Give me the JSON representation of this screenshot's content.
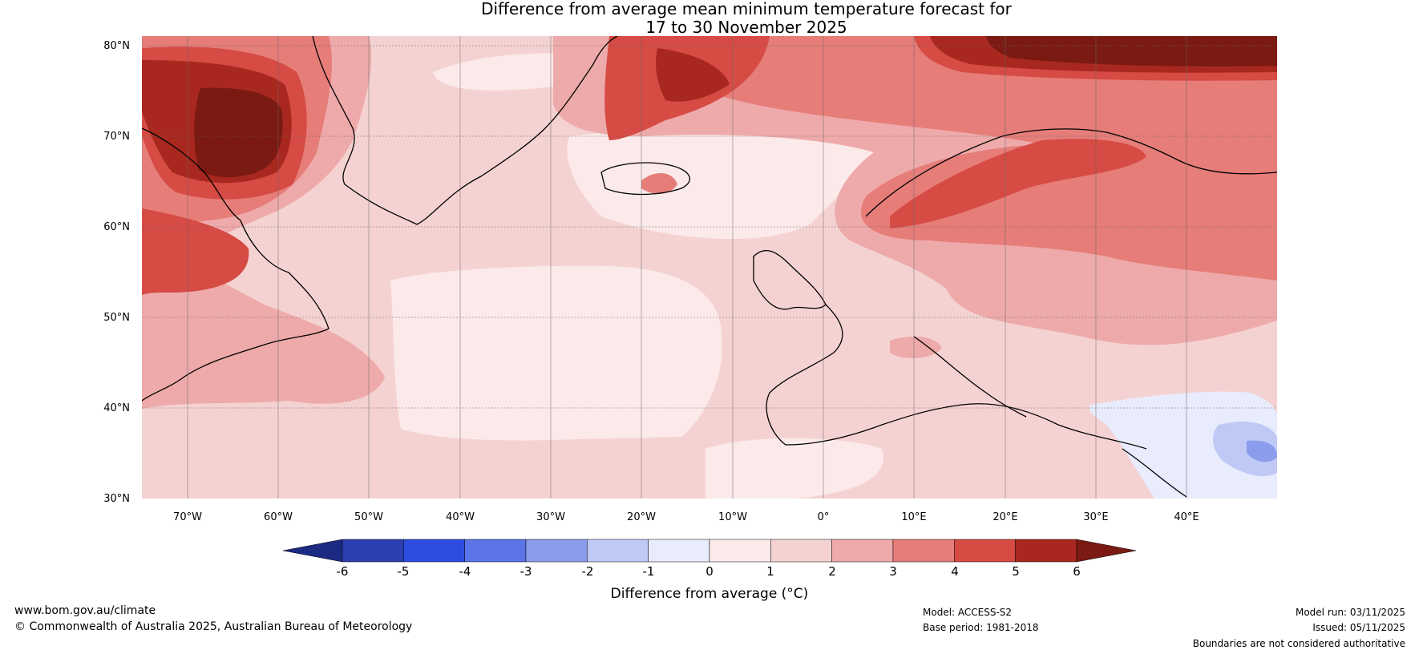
{
  "title": {
    "line1": "Difference from average mean minimum temperature forecast for",
    "line2": "17 to 30 November 2025"
  },
  "map": {
    "lat_labels": [
      "80°N",
      "70°N",
      "60°N",
      "50°N",
      "40°N",
      "30°N"
    ],
    "lon_labels": [
      "70°W",
      "60°W",
      "50°W",
      "40°W",
      "30°W",
      "20°W",
      "10°W",
      "0°",
      "10°E",
      "20°E",
      "30°E",
      "40°E"
    ]
  },
  "legend": {
    "ticks": [
      "-6",
      "-5",
      "-4",
      "-3",
      "-2",
      "-1",
      "0",
      "1",
      "2",
      "3",
      "4",
      "5",
      "6"
    ],
    "colors": [
      "#1c2a82",
      "#2a3fb0",
      "#2e4de0",
      "#5b74e8",
      "#8a9ceb",
      "#c0c9f5",
      "#e8ecfc",
      "#fceaea",
      "#f5d2d2",
      "#eeaaaa",
      "#e67d79",
      "#d64b44",
      "#a8281f",
      "#7a1a12"
    ],
    "label": "Difference from average (°C)"
  },
  "footer": {
    "website": "www.bom.gov.au/climate",
    "copyright": "© Commonwealth of Australia 2025, Australian Bureau of Meteorology",
    "model": "Model: ACCESS-S2",
    "base_period": "Base period: 1981-2018",
    "model_run": "Model run: 03/11/2025",
    "issued": "Issued: 05/11/2025",
    "boundaries_note": "Boundaries are not considered authoritative"
  }
}
